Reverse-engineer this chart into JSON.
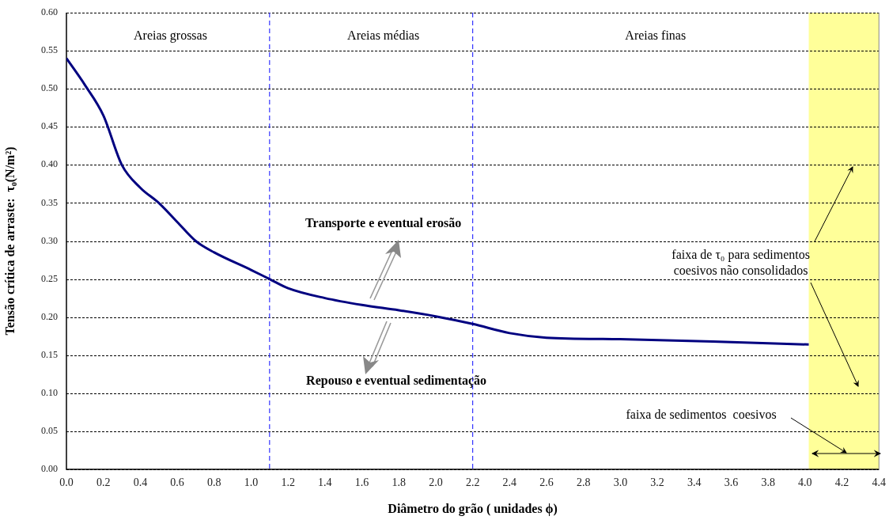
{
  "chart_data": {
    "type": "line",
    "xlabel": "Diâmetro do grão ( unidades ϕ)",
    "ylabel": "Tensão crítica de arraste:  τ₀(N/m²)",
    "x": [
      0,
      0.1,
      0.2,
      0.3,
      0.4,
      0.5,
      0.6,
      0.7,
      0.8,
      1.0,
      1.1,
      1.2,
      1.4,
      1.6,
      1.8,
      2.0,
      2.2,
      2.4,
      2.6,
      3.0,
      3.5,
      4.02
    ],
    "series": [
      {
        "color": "#000080",
        "values": [
          0.54,
          0.505,
          0.465,
          0.4,
          0.37,
          0.35,
          0.325,
          0.3,
          0.285,
          0.262,
          0.25,
          0.238,
          0.225,
          0.216,
          0.209,
          0.201,
          0.191,
          0.179,
          0.173,
          0.171,
          0.168,
          0.164
        ]
      }
    ],
    "xlim": [
      0,
      4.4
    ],
    "ylim": [
      0,
      0.6
    ],
    "xticks": [
      {
        "value": 0,
        "label": "0.0"
      },
      0.2,
      0.4,
      0.6,
      0.8,
      {
        "value": 1,
        "label": "1.0"
      },
      1.2,
      1.4,
      1.6,
      1.8,
      {
        "value": 2,
        "label": "2.0"
      },
      2.2,
      2.4,
      2.6,
      2.8,
      {
        "value": 3,
        "label": "3.0"
      },
      3.2,
      3.4,
      3.6,
      3.8,
      {
        "value": 4,
        "label": "4.0"
      },
      4.2,
      4.4
    ],
    "yticks": [
      {
        "value": 0,
        "label": "0.00"
      },
      {
        "value": 0.05,
        "label": "0.05"
      },
      {
        "value": 0.1,
        "label": "0.10"
      },
      {
        "value": 0.15,
        "label": "0.15"
      },
      {
        "value": 0.2,
        "label": "0.20"
      },
      {
        "value": 0.25,
        "label": "0.25"
      },
      {
        "value": 0.3,
        "label": "0.30"
      },
      {
        "value": 0.35,
        "label": "0.35"
      },
      {
        "value": 0.4,
        "label": "0.40"
      },
      {
        "value": 0.45,
        "label": "0.45"
      },
      {
        "value": 0.5,
        "label": "0.50"
      },
      {
        "value": 0.55,
        "label": "0.55"
      },
      {
        "value": 0.6,
        "label": "0.60"
      }
    ],
    "grid": "y",
    "marker": "none",
    "line_style": "solid",
    "legend": false,
    "ref_lines": [
      {
        "axis": "x",
        "value": 1.1,
        "color": "#3333ff",
        "line_style": "dashed"
      },
      {
        "axis": "x",
        "value": 2.2,
        "color": "#3333ff",
        "line_style": "dashed"
      }
    ],
    "bands": [
      {
        "axis": "x",
        "from": 4.02,
        "to": 4.4,
        "color": "#ffff99",
        "label": "faixa de sedimentos  coesivos"
      }
    ],
    "annotations": [
      "Areias grossas",
      "Areias médias",
      "Areias finas",
      "Transporte e eventual erosão",
      "Repouso e eventual sedimentação",
      "faixa de τ₀ para sedimentos\ncoesivos não consolidados"
    ]
  }
}
